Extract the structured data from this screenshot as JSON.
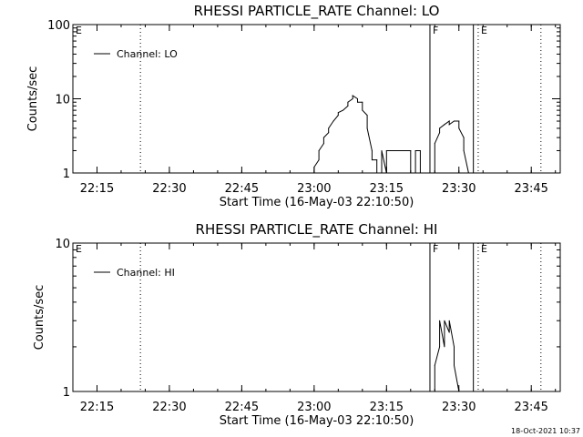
{
  "footer_timestamp": "18-Oct-2021 10:37",
  "colors": {
    "background": "#ffffff",
    "foreground": "#000000"
  },
  "chart_data": [
    {
      "type": "line",
      "title": "RHESSI PARTICLE_RATE Channel: LO",
      "xlabel": "Start Time (16-May-03 22:10:50)",
      "ylabel": "Counts/sec",
      "y_scale": "log",
      "ylim": [
        1,
        100
      ],
      "y_ticks": [
        1,
        10,
        100
      ],
      "y_tick_labels": [
        "1",
        "10",
        "100"
      ],
      "xlim": [
        "22:10",
        "23:51"
      ],
      "x_ticks": [
        "22:15",
        "22:30",
        "22:45",
        "23:00",
        "23:15",
        "23:30",
        "23:45"
      ],
      "legend": {
        "position": "top-left",
        "entries": [
          "Channel: LO"
        ]
      },
      "vertical_markers": [
        {
          "time": "22:10",
          "style": "none",
          "label": "E"
        },
        {
          "time": "22:24",
          "style": "dotted",
          "label": ""
        },
        {
          "time": "23:24",
          "style": "solid",
          "label": "F"
        },
        {
          "time": "23:33",
          "style": "solid",
          "label": ""
        },
        {
          "time": "23:34",
          "style": "dotted",
          "label": "E"
        },
        {
          "time": "23:47",
          "style": "dotted",
          "label": ""
        }
      ],
      "series": [
        {
          "name": "Channel: LO",
          "points": [
            [
              "23:00",
              1
            ],
            [
              "23:00",
              1.2
            ],
            [
              "23:01",
              1.5
            ],
            [
              "23:01",
              2
            ],
            [
              "23:02",
              2.5
            ],
            [
              "23:02",
              3
            ],
            [
              "23:03",
              3.5
            ],
            [
              "23:03",
              4
            ],
            [
              "23:04",
              5
            ],
            [
              "23:05",
              6
            ],
            [
              "23:05",
              6.5
            ],
            [
              "23:06",
              7
            ],
            [
              "23:07",
              8
            ],
            [
              "23:07",
              9
            ],
            [
              "23:08",
              10
            ],
            [
              "23:08",
              11
            ],
            [
              "23:09",
              10
            ],
            [
              "23:09",
              9
            ],
            [
              "23:10",
              9
            ],
            [
              "23:10",
              7
            ],
            [
              "23:11",
              6
            ],
            [
              "23:11",
              4
            ],
            [
              "23:12",
              2
            ],
            [
              "23:12",
              1.5
            ],
            [
              "23:13",
              1.5
            ],
            [
              "23:13",
              1
            ],
            [
              "23:14",
              1
            ],
            [
              "23:14",
              2
            ],
            [
              "23:15",
              1
            ],
            [
              "23:15",
              2
            ],
            [
              "23:16",
              2
            ],
            [
              "23:17",
              2
            ],
            [
              "23:18",
              2
            ],
            [
              "23:19",
              2
            ],
            [
              "23:20",
              2
            ],
            [
              "23:20",
              1
            ],
            [
              "23:21",
              1
            ],
            [
              "23:21",
              2
            ],
            [
              "23:22",
              2
            ],
            [
              "23:22",
              1
            ],
            [
              "23:23",
              1
            ],
            [
              "23:25",
              1
            ],
            [
              "23:25",
              2.5
            ],
            [
              "23:26",
              3.5
            ],
            [
              "23:26",
              4
            ],
            [
              "23:27",
              4.5
            ],
            [
              "23:28",
              5
            ],
            [
              "23:28",
              4.5
            ],
            [
              "23:29",
              5
            ],
            [
              "23:30",
              5
            ],
            [
              "23:30",
              4
            ],
            [
              "23:31",
              3
            ],
            [
              "23:31",
              2
            ],
            [
              "23:32",
              1
            ]
          ]
        }
      ]
    },
    {
      "type": "line",
      "title": "RHESSI PARTICLE_RATE Channel: HI",
      "xlabel": "Start Time (16-May-03 22:10:50)",
      "ylabel": "Counts/sec",
      "y_scale": "log",
      "ylim": [
        1,
        10
      ],
      "y_ticks": [
        1,
        10
      ],
      "y_tick_labels": [
        "1",
        "10"
      ],
      "xlim": [
        "22:10",
        "23:51"
      ],
      "x_ticks": [
        "22:15",
        "22:30",
        "22:45",
        "23:00",
        "23:15",
        "23:30",
        "23:45"
      ],
      "legend": {
        "position": "top-left",
        "entries": [
          "Channel: HI"
        ]
      },
      "vertical_markers": [
        {
          "time": "22:10",
          "style": "none",
          "label": "E"
        },
        {
          "time": "22:24",
          "style": "dotted",
          "label": ""
        },
        {
          "time": "23:24",
          "style": "solid",
          "label": "F"
        },
        {
          "time": "23:33",
          "style": "solid",
          "label": ""
        },
        {
          "time": "23:34",
          "style": "dotted",
          "label": "E"
        },
        {
          "time": "23:47",
          "style": "dotted",
          "label": ""
        }
      ],
      "series": [
        {
          "name": "Channel: HI",
          "points": [
            [
              "23:25",
              1
            ],
            [
              "23:25",
              1.5
            ],
            [
              "23:26",
              2
            ],
            [
              "23:26",
              3
            ],
            [
              "23:27",
              2
            ],
            [
              "23:27",
              3
            ],
            [
              "23:28",
              2.5
            ],
            [
              "23:28",
              3
            ],
            [
              "23:29",
              2
            ],
            [
              "23:29",
              1.5
            ],
            [
              "23:30",
              1
            ]
          ]
        }
      ]
    }
  ]
}
